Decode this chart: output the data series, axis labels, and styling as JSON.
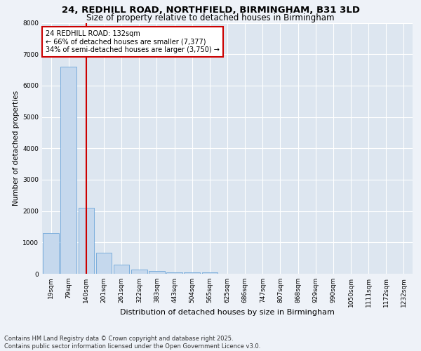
{
  "title1": "24, REDHILL ROAD, NORTHFIELD, BIRMINGHAM, B31 3LD",
  "title2": "Size of property relative to detached houses in Birmingham",
  "xlabel": "Distribution of detached houses by size in Birmingham",
  "ylabel": "Number of detached properties",
  "bar_color": "#c5d8ed",
  "bar_edgecolor": "#5b9bd5",
  "bar_width": 0.9,
  "categories": [
    "19sqm",
    "79sqm",
    "140sqm",
    "201sqm",
    "261sqm",
    "322sqm",
    "383sqm",
    "443sqm",
    "504sqm",
    "565sqm",
    "625sqm",
    "686sqm",
    "747sqm",
    "807sqm",
    "868sqm",
    "929sqm",
    "990sqm",
    "1050sqm",
    "1111sqm",
    "1172sqm",
    "1232sqm"
  ],
  "values": [
    1300,
    6600,
    2100,
    680,
    300,
    130,
    80,
    50,
    50,
    50,
    0,
    0,
    0,
    0,
    0,
    0,
    0,
    0,
    0,
    0,
    0
  ],
  "property_bar_index": 2,
  "vline_color": "#cc0000",
  "annotation_line1": "24 REDHILL ROAD: 132sqm",
  "annotation_line2": "← 66% of detached houses are smaller (7,377)",
  "annotation_line3": "34% of semi-detached houses are larger (3,750) →",
  "annotation_box_color": "#ffffff",
  "annotation_box_edgecolor": "#cc0000",
  "ylim": [
    0,
    8000
  ],
  "yticks": [
    0,
    1000,
    2000,
    3000,
    4000,
    5000,
    6000,
    7000,
    8000
  ],
  "background_color": "#eef2f8",
  "plot_bg_color": "#dde6f0",
  "footer_line1": "Contains HM Land Registry data © Crown copyright and database right 2025.",
  "footer_line2": "Contains public sector information licensed under the Open Government Licence v3.0.",
  "title1_fontsize": 9.5,
  "title2_fontsize": 8.5,
  "xlabel_fontsize": 8,
  "ylabel_fontsize": 7.5,
  "tick_fontsize": 6.5,
  "annotation_fontsize": 7,
  "footer_fontsize": 6
}
